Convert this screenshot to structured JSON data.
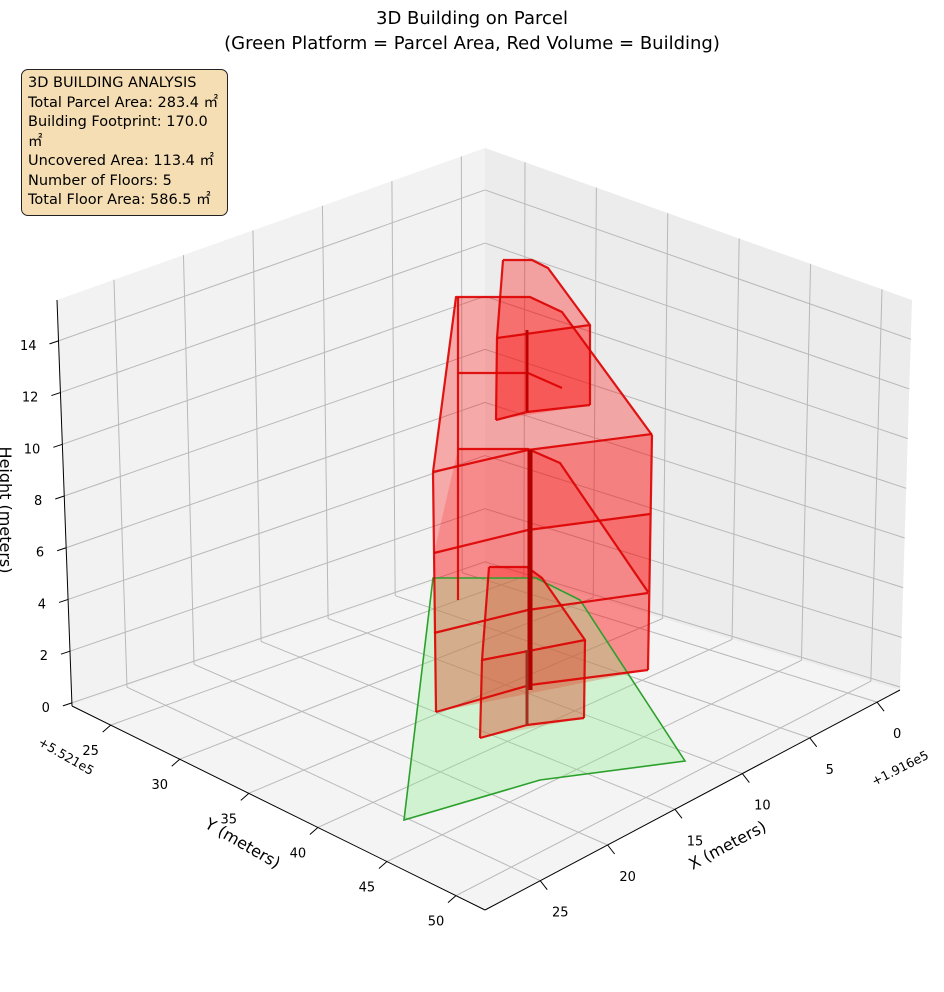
{
  "chart_data": {
    "type": "3d",
    "title": "3D Building on Parcel",
    "subtitle": "(Green Platform = Parcel Area, Red Volume = Building)",
    "xlabel": "X (meters)",
    "ylabel": "Y (meters)",
    "zlabel": "Height (meters)",
    "x_offset_text": "+1.916e5",
    "y_offset_text": "+5.521e5",
    "xlim": [
      -1.7,
      29.1
    ],
    "ylim": [
      22.2,
      52.1
    ],
    "zlim": [
      -0.12,
      15.58
    ],
    "xticks": [
      0,
      5,
      10,
      15,
      20,
      25
    ],
    "yticks": [
      25,
      30,
      35,
      40,
      45,
      50
    ],
    "zticks": [
      0,
      2,
      4,
      6,
      8,
      10,
      12,
      14
    ],
    "grid": true,
    "series": [
      {
        "name": "Parcel Area",
        "color": "#2ca02c",
        "fill": "#90ee90"
      },
      {
        "name": "Building",
        "color": "#dd0000",
        "fill": "#ff0000",
        "floors": 5
      }
    ]
  },
  "info": {
    "heading": "3D BUILDING ANALYSIS",
    "lines": [
      "Total Parcel Area: 283.4 ㎡",
      "Building Footprint: 170.0 ㎡",
      "Uncovered Area: 113.4 ㎡",
      "Number of Floors: 5",
      "Total Floor Area: 586.5 ㎡"
    ]
  }
}
